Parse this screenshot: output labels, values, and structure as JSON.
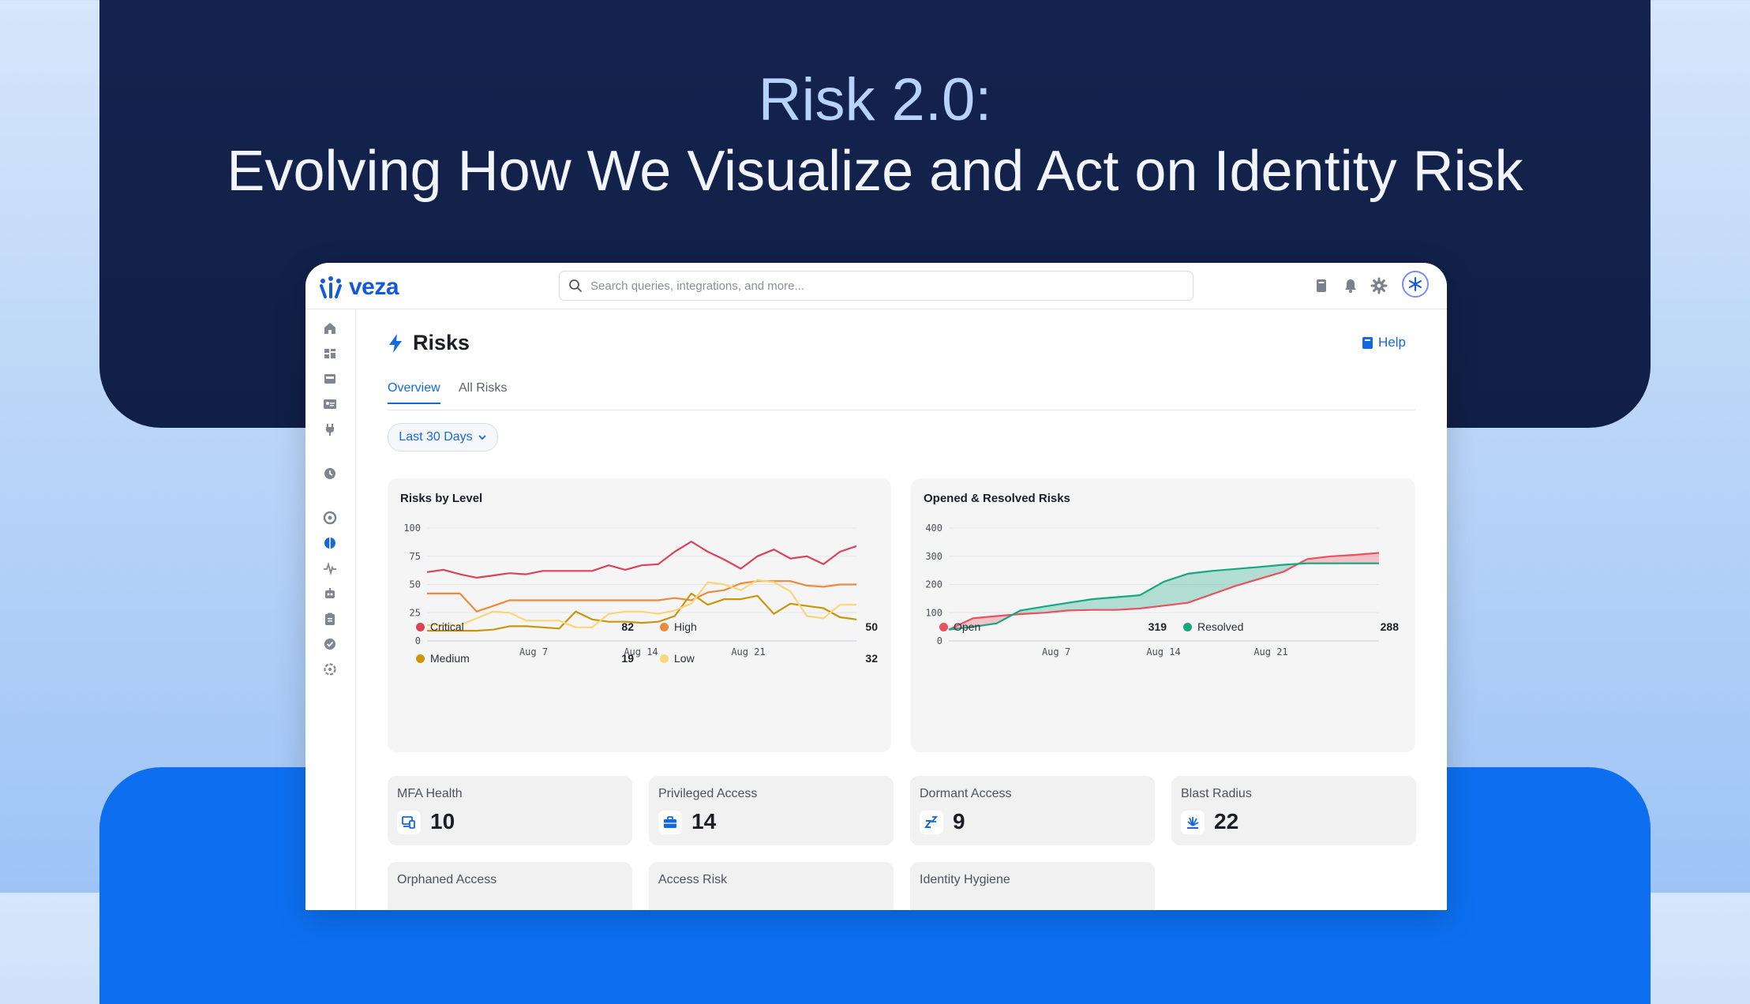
{
  "hero": {
    "title": "Risk 2.0:",
    "subtitle": "Evolving How We Visualize and Act on Identity Risk"
  },
  "app": {
    "brand": "veza",
    "search_placeholder": "Search queries, integrations, and more...",
    "page_title": "Risks",
    "help_label": "Help",
    "tabs": [
      {
        "label": "Overview",
        "active": true
      },
      {
        "label": "All Risks",
        "active": false
      }
    ],
    "date_range": "Last 30 Days"
  },
  "colors": {
    "accent": "#1469e0",
    "critical": "#d9445a",
    "high": "#ef8a3c",
    "medium": "#c9960c",
    "low": "#f7d77a",
    "open": "#e8515f",
    "resolved": "#17a77f"
  },
  "chart_data": [
    {
      "type": "line",
      "title": "Risks by Level",
      "x_ticks": [
        "Aug 7",
        "Aug 14",
        "Aug 21"
      ],
      "ylim": [
        0,
        100
      ],
      "y_ticks": [
        0,
        25,
        50,
        75,
        100
      ],
      "grid": true,
      "series": [
        {
          "name": "Critical",
          "total": "82",
          "values": [
            61,
            63,
            59,
            56,
            58,
            60,
            59,
            62,
            62,
            62,
            62,
            67,
            63,
            67,
            68,
            79,
            88,
            79,
            72,
            64,
            75,
            81,
            73,
            75,
            68,
            79,
            84
          ]
        },
        {
          "name": "High",
          "total": "50",
          "values": [
            42,
            42,
            42,
            26,
            31,
            36,
            36,
            36,
            36,
            36,
            36,
            36,
            36,
            36,
            36,
            38,
            36,
            43,
            45,
            51,
            53,
            53,
            53,
            49,
            48,
            50,
            50
          ]
        },
        {
          "name": "Medium",
          "total": "19",
          "values": [
            9,
            9,
            9,
            9,
            10,
            13,
            13,
            12,
            11,
            26,
            19,
            17,
            17,
            16,
            17,
            22,
            42,
            32,
            37,
            37,
            40,
            24,
            33,
            31,
            29,
            21,
            19
          ]
        },
        {
          "name": "Low",
          "total": "32",
          "values": [
            14,
            14,
            14,
            20,
            26,
            25,
            18,
            18,
            18,
            12,
            12,
            24,
            26,
            26,
            24,
            27,
            33,
            52,
            50,
            45,
            54,
            52,
            44,
            22,
            20,
            32,
            32
          ]
        }
      ]
    },
    {
      "type": "area",
      "title": "Opened & Resolved Risks",
      "x_ticks": [
        "Aug 7",
        "Aug 14",
        "Aug 21"
      ],
      "ylim": [
        0,
        400
      ],
      "y_ticks": [
        0,
        100,
        200,
        300,
        400
      ],
      "grid": true,
      "series": [
        {
          "name": "Open",
          "total": "319",
          "values": [
            40,
            80,
            88,
            95,
            100,
            108,
            110,
            110,
            115,
            125,
            135,
            165,
            195,
            220,
            245,
            290,
            300,
            305,
            312
          ]
        },
        {
          "name": "Resolved",
          "total": "288",
          "values": [
            40,
            50,
            62,
            108,
            122,
            135,
            148,
            155,
            162,
            210,
            238,
            248,
            255,
            262,
            270,
            275,
            275,
            275,
            275
          ]
        }
      ]
    }
  ],
  "metrics": [
    {
      "label": "MFA Health",
      "value": "10",
      "icon": "devices-icon"
    },
    {
      "label": "Privileged Access",
      "value": "14",
      "icon": "briefcase-icon"
    },
    {
      "label": "Dormant Access",
      "value": "9",
      "icon": "sleep-icon"
    },
    {
      "label": "Blast Radius",
      "value": "22",
      "icon": "explosion-icon"
    },
    {
      "label": "Orphaned Access",
      "value": "",
      "icon": ""
    },
    {
      "label": "Access Risk",
      "value": "",
      "icon": ""
    },
    {
      "label": "Identity Hygiene",
      "value": "",
      "icon": ""
    }
  ]
}
